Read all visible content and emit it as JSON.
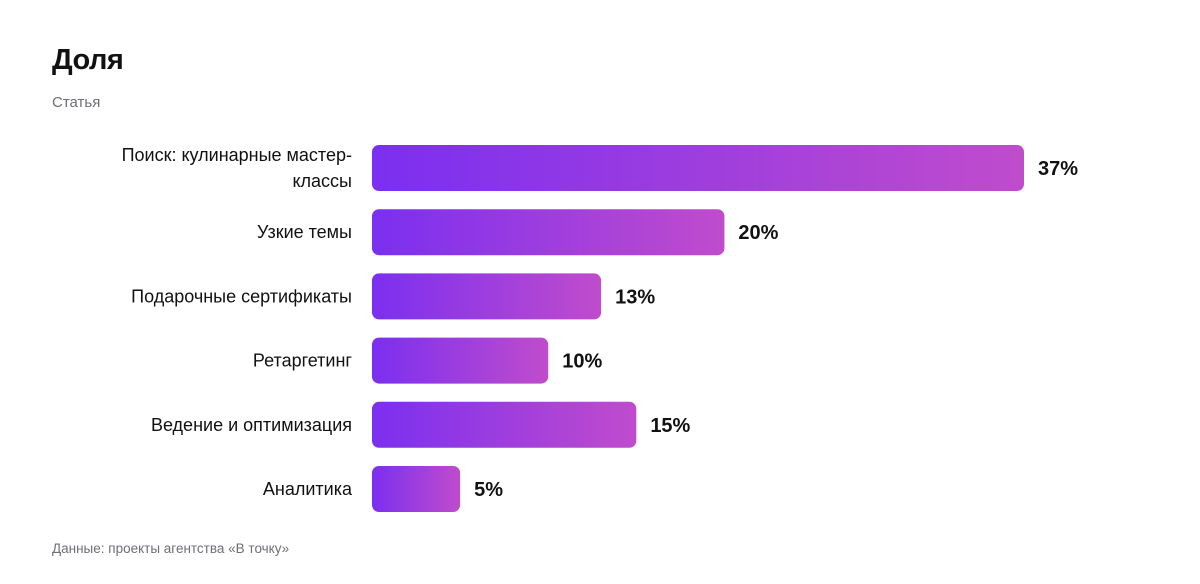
{
  "header": {
    "title": "Доля",
    "subtitle": "Статья"
  },
  "footer": {
    "source_note": "Данные: проекты агентства «В точку»"
  },
  "colors": {
    "bar_gradient_start": "#7b2ff0",
    "bar_gradient_end": "#c04ccc",
    "label_text": "#111111",
    "muted_text": "#6e6e78"
  },
  "chart_data": {
    "type": "bar",
    "orientation": "horizontal",
    "title": "Доля",
    "subtitle": "Статья",
    "categories": [
      [
        "Поиск: кулинарные мастер-",
        "классы"
      ],
      [
        "Узкие темы"
      ],
      [
        "Подарочные сертификаты"
      ],
      [
        "Ретаргетинг"
      ],
      [
        "Ведение и оптимизация"
      ],
      [
        "Аналитика"
      ]
    ],
    "values": [
      37,
      20,
      13,
      10,
      15,
      5
    ],
    "value_labels": [
      "37%",
      "20%",
      "13%",
      "10%",
      "15%",
      "5%"
    ],
    "unit": "%",
    "xlim": [
      0,
      40
    ],
    "grid": false,
    "legend": "none"
  }
}
